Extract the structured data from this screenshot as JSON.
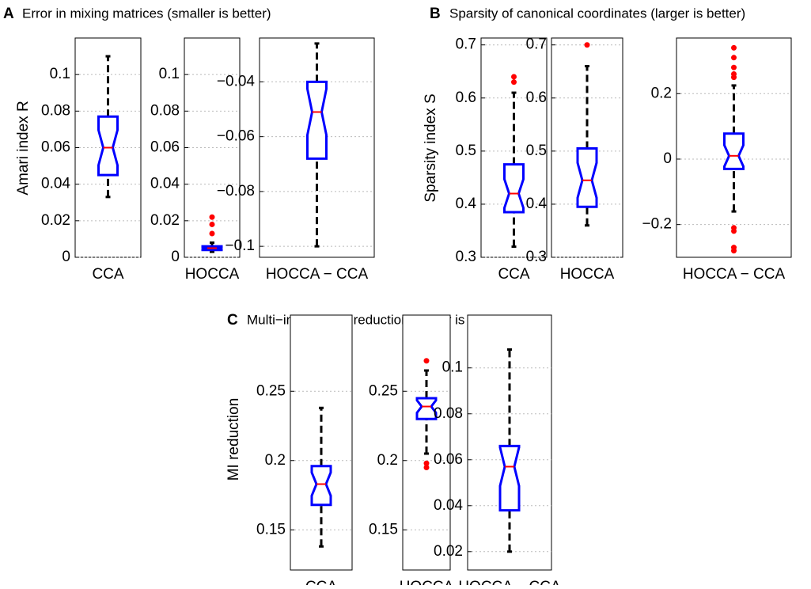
{
  "chart_data": [
    {
      "type": "box",
      "panel": "A",
      "title": "Error in mixing matrices (smaller is better)",
      "ylabel": "Amari index R",
      "category": "CCA",
      "ylim": [
        0,
        0.12
      ],
      "yticks": [
        0,
        0.02,
        0.04,
        0.06,
        0.08,
        0.1
      ],
      "grid": true,
      "stats": {
        "whislo": 0.033,
        "q1": 0.045,
        "med": 0.06,
        "q3": 0.077,
        "whishi": 0.11
      },
      "fliers": []
    },
    {
      "type": "box",
      "category": "HOCCA",
      "ylim": [
        0,
        0.12
      ],
      "yticks": [
        0,
        0.02,
        0.04,
        0.06,
        0.08,
        0.1
      ],
      "grid": true,
      "stats": {
        "whislo": 0.003,
        "q1": 0.004,
        "med": 0.005,
        "q3": 0.006,
        "whishi": 0.008
      },
      "fliers": [
        0.013,
        0.018,
        0.022
      ]
    },
    {
      "type": "box",
      "category": "HOCCA − CCA",
      "ylim": [
        -0.104,
        -0.024
      ],
      "yticks": [
        {
          "value": -0.1,
          "label": "−0.1"
        },
        {
          "value": -0.08,
          "label": "−0.08"
        },
        {
          "value": -0.06,
          "label": "−0.06"
        },
        {
          "value": -0.04,
          "label": "−0.04"
        }
      ],
      "grid": true,
      "stats": {
        "whislo": -0.1,
        "q1": -0.068,
        "med": -0.051,
        "q3": -0.04,
        "whishi": -0.026
      },
      "fliers": []
    },
    {
      "type": "box",
      "panel": "B",
      "title": "Sparsity of canonical coordinates (larger is better)",
      "ylabel": "Sparsity index S",
      "category": "CCA",
      "ylim": [
        0.3,
        0.713
      ],
      "yticks": [
        0.3,
        0.4,
        0.5,
        0.6,
        0.7
      ],
      "grid": true,
      "stats": {
        "whislo": 0.32,
        "q1": 0.385,
        "med": 0.42,
        "q3": 0.475,
        "whishi": 0.61
      },
      "fliers": [
        0.63,
        0.64
      ]
    },
    {
      "type": "box",
      "category": "HOCCA",
      "ylim": [
        0.3,
        0.713
      ],
      "yticks": [
        0.3,
        0.4,
        0.5,
        0.6,
        0.7
      ],
      "grid": true,
      "stats": {
        "whislo": 0.36,
        "q1": 0.395,
        "med": 0.445,
        "q3": 0.505,
        "whishi": 0.66
      },
      "fliers": [
        0.7
      ]
    },
    {
      "type": "box",
      "category": "HOCCA − CCA",
      "ylim": [
        -0.3,
        0.37
      ],
      "yticks": [
        {
          "value": -0.2,
          "label": "−0.2"
        },
        0,
        0.2
      ],
      "grid": true,
      "stats": {
        "whislo": -0.16,
        "q1": -0.03,
        "med": 0.01,
        "q3": 0.078,
        "whishi": 0.225
      },
      "fliers": [
        0.25,
        0.26,
        0.28,
        0.31,
        0.34,
        -0.21,
        -0.22,
        -0.27,
        -0.28
      ]
    },
    {
      "type": "box",
      "panel": "C",
      "title": "Multi−information reduction (larger is better)",
      "ylabel": "MI reduction",
      "category": "CCA",
      "ylim": [
        0.121,
        0.305
      ],
      "yticks": [
        0.15,
        0.2,
        0.25
      ],
      "grid": true,
      "stats": {
        "whislo": 0.138,
        "q1": 0.168,
        "med": 0.183,
        "q3": 0.196,
        "whishi": 0.238
      },
      "fliers": []
    },
    {
      "type": "box",
      "category": "HOCCA",
      "ylim": [
        0.121,
        0.305
      ],
      "yticks": [
        0.15,
        0.2,
        0.25
      ],
      "grid": true,
      "stats": {
        "whislo": 0.205,
        "q1": 0.23,
        "med": 0.239,
        "q3": 0.245,
        "whishi": 0.265
      },
      "fliers": [
        0.272,
        0.198,
        0.195
      ]
    },
    {
      "type": "box",
      "category": "HOCCA − CCA",
      "ylim": [
        0.012,
        0.123
      ],
      "yticks": [
        0.02,
        0.04,
        0.06,
        0.08,
        0.1
      ],
      "grid": true,
      "stats": {
        "whislo": 0.02,
        "q1": 0.038,
        "med": 0.057,
        "q3": 0.066,
        "whishi": 0.108
      },
      "fliers": []
    }
  ]
}
